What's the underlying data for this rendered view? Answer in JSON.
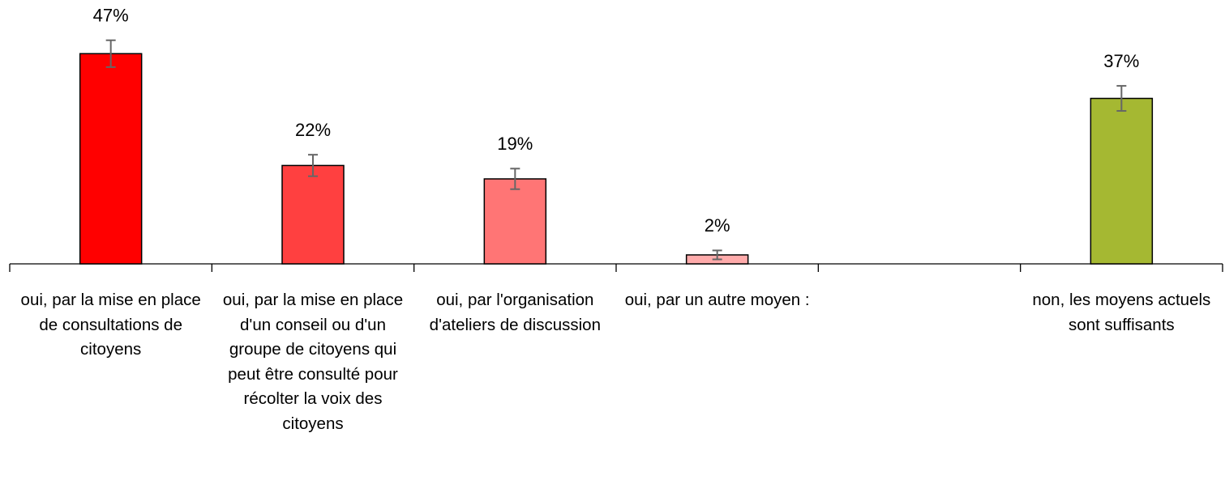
{
  "chart_data": {
    "type": "bar",
    "categories": [
      "oui, par la mise en place de consultations de citoyens",
      "oui, par la mise en place d'un conseil ou d'un groupe de citoyens qui peut être consulté pour récolter la voix des citoyens",
      "oui, par l'organisation d'ateliers de discussion",
      "oui, par un autre moyen :",
      null,
      "non, les moyens actuels sont suffisants"
    ],
    "values": [
      47,
      22,
      19,
      2,
      null,
      37
    ],
    "value_labels": [
      "47%",
      "22%",
      "19%",
      "2%",
      null,
      "37%"
    ],
    "errors": [
      3,
      2.4,
      2.3,
      1,
      null,
      2.8
    ],
    "colors": [
      "#ff0000",
      "#ff4040",
      "#ff7575",
      "#ffabab",
      null,
      "#a5b832"
    ],
    "ylim": [
      0,
      59
    ],
    "grid": false
  }
}
